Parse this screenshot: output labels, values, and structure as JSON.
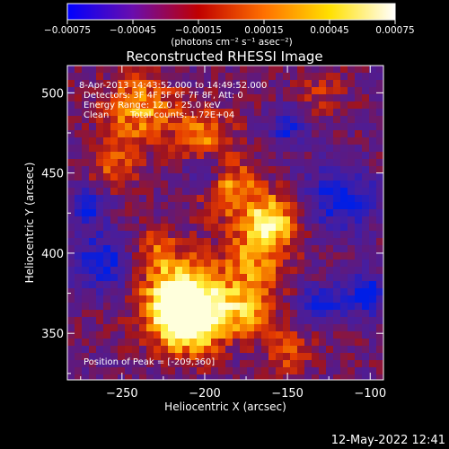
{
  "chart_data": {
    "type": "heatmap",
    "title": "Reconstructed RHESSI Image",
    "xlabel": "Heliocentric X (arcsec)",
    "ylabel": "Heliocentric Y (arcsec)",
    "xlim": [
      -283,
      -92
    ],
    "ylim": [
      321,
      517
    ],
    "x_ticks": [
      -250,
      -200,
      -150,
      -100
    ],
    "x_tick_labels": [
      "−250",
      "−200",
      "−150",
      "−100"
    ],
    "y_ticks": [
      350,
      400,
      450,
      500
    ],
    "y_tick_labels": [
      "350",
      "400",
      "450",
      "500"
    ],
    "colorbar": {
      "range": [
        -0.00075,
        0.00075
      ],
      "ticks": [
        -0.00075,
        -0.00045,
        -0.00015,
        0.00015,
        0.00045,
        0.00075
      ],
      "tick_labels": [
        "−0.00075",
        "−0.00045",
        "−0.00015",
        "0.00015",
        "0.00045",
        "0.00075"
      ],
      "unit_label": "(photons cm⁻² s⁻¹ asec⁻²)",
      "colors": [
        "#0000ff",
        "#6a0dad",
        "#c00000",
        "#ff7000",
        "#ffe000",
        "#ffffff"
      ]
    },
    "annotations": {
      "time_range": "8-Apr-2013 14:43:52.000 to 14:49:52.000",
      "detectors": "Detectors: 3F 4F 5F 6F 7F 8F, Att: 0",
      "energy_range": "Energy Range: 12.0 - 25.0 keV",
      "method": "Clean",
      "total_counts": "Total counts: 1.72E+04",
      "peak_position": "Position of Peak = [-209,360]"
    },
    "peak_position": [
      -209,
      360
    ],
    "plot_date": "12-May-2022 12:41"
  }
}
